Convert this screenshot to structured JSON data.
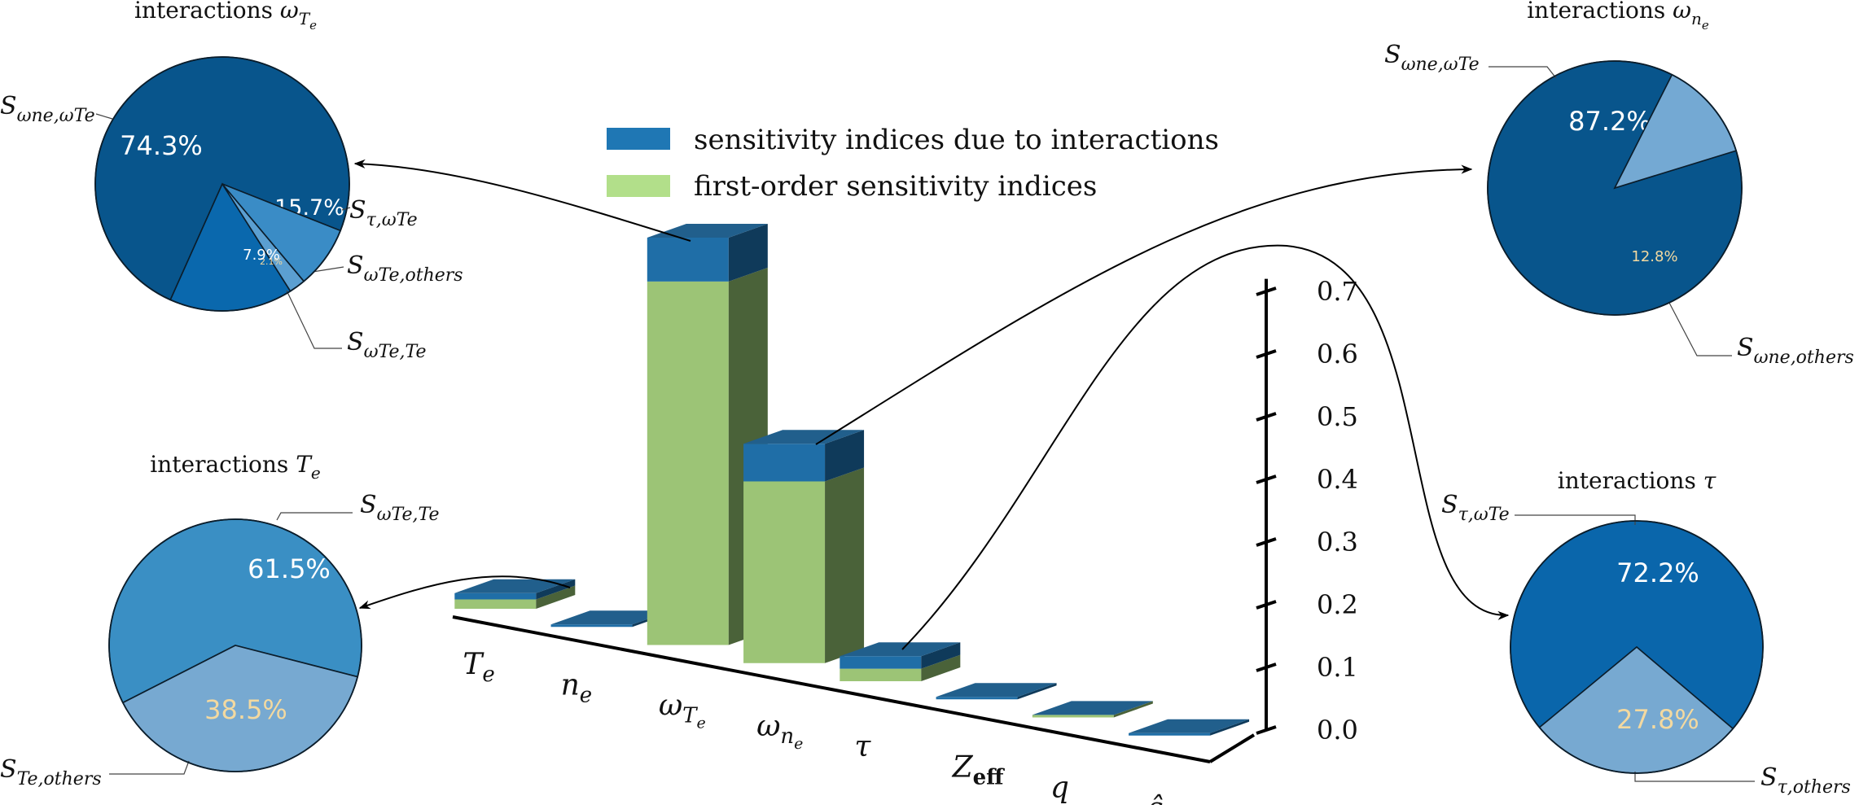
{
  "chart_data": {
    "type": "bar",
    "bars_3d": {
      "categories": [
        "Te",
        "ne",
        "ωTe",
        "ωne",
        "τ",
        "Zeff",
        "q",
        "ŝ"
      ],
      "category_tex": [
        {
          "base": "T",
          "sub": "e",
          "sub2": ""
        },
        {
          "base": "n",
          "sub": "e",
          "sub2": ""
        },
        {
          "base": "ω",
          "sub": "T",
          "sub2": "e"
        },
        {
          "base": "ω",
          "sub": "n",
          "sub2": "e"
        },
        {
          "base": "τ",
          "sub": "",
          "sub2": ""
        },
        {
          "base": "Z",
          "sub": "eff",
          "sub2": ""
        },
        {
          "base": "q",
          "sub": "",
          "sub2": ""
        },
        {
          "base": "ŝ",
          "sub": "",
          "sub2": ""
        }
      ],
      "series": [
        {
          "name": "first-order sensitivity indices",
          "values": [
            0.015,
            0.0,
            0.58,
            0.29,
            0.02,
            0.0,
            0.004,
            0.0
          ]
        },
        {
          "name": "sensitivity indices due to interactions",
          "values": [
            0.01,
            0.0,
            0.07,
            0.06,
            0.02,
            0.0,
            0.0,
            0.0
          ]
        }
      ],
      "yticks": [
        "0.0",
        "0.1",
        "0.2",
        "0.3",
        "0.4",
        "0.5",
        "0.6",
        "0.7"
      ],
      "ylim": [
        0,
        0.72
      ]
    },
    "pies": [
      {
        "title": "interactions ωTe",
        "title_base": "interactions ",
        "title_sym": "ω",
        "title_sub": "T",
        "title_sub2": "e",
        "slices": [
          {
            "label_base": "S",
            "label_sub": "ωne,ωTe",
            "value": 74.3,
            "pct": "74.3%",
            "color": "#08558c"
          },
          {
            "label_base": "S",
            "label_sub": "τ,ωTe",
            "value": 15.7,
            "pct": "15.7%",
            "color": "#0a68ad"
          },
          {
            "label_base": "S",
            "label_sub": "ωTe,others",
            "value": 2.1,
            "pct": "2.1%",
            "color": "#5b9fd1"
          },
          {
            "label_base": "S",
            "label_sub": "ωTe,Te",
            "value": 7.9,
            "pct": "7.9%",
            "color": "#3a8cc6"
          }
        ]
      },
      {
        "title": "interactions ωne",
        "title_base": "interactions ",
        "title_sym": "ω",
        "title_sub": "n",
        "title_sub2": "e",
        "slices": [
          {
            "label_base": "S",
            "label_sub": "ωne,ωTe",
            "value": 87.2,
            "pct": "87.2%",
            "color": "#08558c"
          },
          {
            "label_base": "S",
            "label_sub": "ωne,others",
            "value": 12.8,
            "pct": "12.8%",
            "color": "#74a9d3"
          }
        ]
      },
      {
        "title": "interactions Te",
        "title_base": "interactions ",
        "title_sym": "T",
        "title_sub": "e",
        "title_sub2": "",
        "slices": [
          {
            "label_base": "S",
            "label_sub": "ωTe,Te",
            "value": 61.5,
            "pct": "61.5%",
            "color": "#3a8fc4"
          },
          {
            "label_base": "S",
            "label_sub": "Te,others",
            "value": 38.5,
            "pct": "38.5%",
            "color": "#77a9d1"
          }
        ]
      },
      {
        "title": "interactions τ",
        "title_base": "interactions ",
        "title_sym": "τ",
        "title_sub": "",
        "title_sub2": "",
        "slices": [
          {
            "label_base": "S",
            "label_sub": "τ,ωTe",
            "value": 72.2,
            "pct": "72.2%",
            "color": "#0a66ab"
          },
          {
            "label_base": "S",
            "label_sub": "τ,others",
            "value": 27.8,
            "pct": "27.8%",
            "color": "#77a9d1"
          }
        ]
      }
    ],
    "legend": [
      {
        "label": "sensitivity indices due to interactions",
        "color": "#1f77b4"
      },
      {
        "label": "first-order sensitivity indices",
        "color": "#b2df8a"
      }
    ]
  },
  "colors": {
    "interaction_top": "#215f8c",
    "interaction_front": "#1f6ea7",
    "interaction_side": "#0f3a5a",
    "first_front": "#9cc476",
    "first_side": "#4a6239",
    "first_top": "#b8dc8f"
  }
}
